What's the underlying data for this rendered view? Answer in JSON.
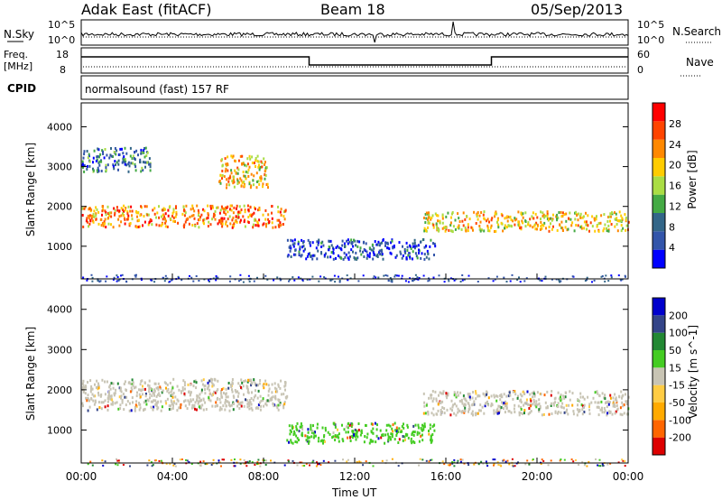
{
  "header": {
    "station": "Adak East (fitACF)",
    "beam": "Beam 18",
    "date": "05/Sep/2013"
  },
  "top_strip": {
    "left_label": "N.Sky",
    "right_label": "N.Search",
    "y_ticks": [
      "10^5",
      "10^0"
    ]
  },
  "freq_strip": {
    "left_label_1": "Freq.",
    "left_label_2": "[MHz]",
    "left_ticks": [
      "18",
      "8"
    ],
    "right_label": "Nave",
    "right_ticks": [
      "60",
      "0"
    ]
  },
  "cpid": {
    "label": "CPID",
    "text": "normalsound (fast) 157 RF"
  },
  "colors": {
    "power": [
      "#0000ff",
      "#3355aa",
      "#336688",
      "#44aa44",
      "#aadd44",
      "#ffcc00",
      "#ff8800",
      "#ff4400",
      "#ff0000"
    ],
    "velocity": [
      "#dd0000",
      "#ff6600",
      "#ffaa00",
      "#ffcc44",
      "#c8c4b4",
      "#44cc22",
      "#228833",
      "#334488",
      "#0000cc"
    ]
  },
  "chart_data": [
    {
      "type": "heatmap",
      "title": "",
      "ylabel": "Slant Range [km]",
      "ylim": [
        180,
        4600
      ],
      "yticks": [
        "4000",
        "3000",
        "2000",
        "1000"
      ],
      "xlim": [
        "00:00",
        "24:00"
      ],
      "colorbar_label": "Power [dB]",
      "colorbar_ticks": [
        "28",
        "24",
        "20",
        "16",
        "12",
        "8",
        "4"
      ],
      "colorbar_range": [
        0,
        32
      ],
      "approx_regions": [
        {
          "from_h": 0,
          "to_h": 9,
          "range_km": [
            1500,
            2050
          ],
          "value_dB": 22
        },
        {
          "from_h": 6,
          "to_h": 8.2,
          "range_km": [
            2500,
            3300
          ],
          "value_dB": 20
        },
        {
          "from_h": 9,
          "to_h": 15.5,
          "range_km": [
            700,
            1200
          ],
          "value_dB": 4
        },
        {
          "from_h": 15,
          "to_h": 24,
          "range_km": [
            1400,
            1900
          ],
          "value_dB": 18
        },
        {
          "from_h": 0,
          "to_h": 3,
          "range_km": [
            2900,
            3500
          ],
          "value_dB": 6
        }
      ]
    },
    {
      "type": "heatmap",
      "title": "",
      "xlabel": "Time UT",
      "ylabel": "Slant Range [km]",
      "ylim": [
        180,
        4600
      ],
      "yticks": [
        "4000",
        "3000",
        "2000",
        "1000"
      ],
      "xticks": [
        "00:00",
        "04:00",
        "08:00",
        "12:00",
        "16:00",
        "20:00",
        "00:00"
      ],
      "colorbar_label": "Velocity [m s^-1]",
      "colorbar_ticks": [
        "200",
        "100",
        "50",
        "15",
        "-15",
        "-50",
        "-100",
        "-200"
      ],
      "colorbar_range": [
        -250,
        250
      ],
      "approx_regions": [
        {
          "from_h": 0,
          "to_h": 9,
          "range_km": [
            1500,
            2300
          ],
          "velocity": 0
        },
        {
          "from_h": 9,
          "to_h": 15.5,
          "range_km": [
            700,
            1200
          ],
          "velocity": 40
        },
        {
          "from_h": 15,
          "to_h": 24,
          "range_km": [
            1400,
            2000
          ],
          "velocity": 0
        }
      ]
    }
  ]
}
